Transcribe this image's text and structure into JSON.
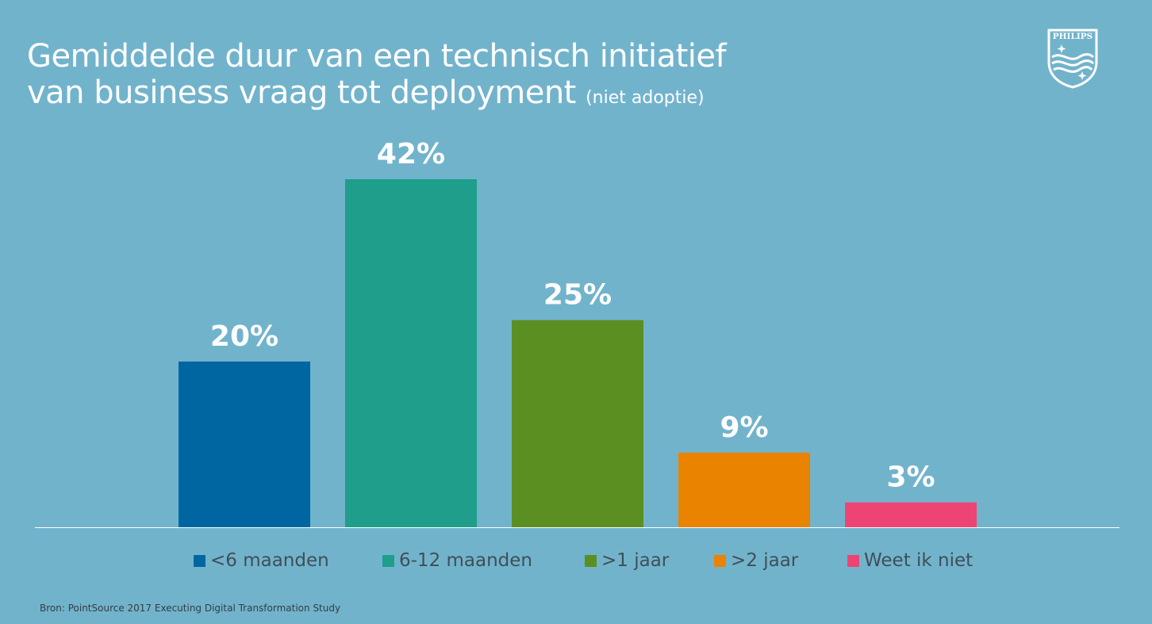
{
  "header": {
    "title_line1": "Gemiddelde duur van een technisch initiatief",
    "title_line2": "van business vraag tot deployment",
    "title_suffix": "(niet adoptie)"
  },
  "logo": {
    "text": "PHILIPS",
    "icon": "philips-shield-icon"
  },
  "colors": {
    "background": "#72b3cc",
    "label": "#ffffff",
    "axis": "#ffffff",
    "legend_text": "#3f4f57"
  },
  "chart_data": {
    "type": "bar",
    "title": "Gemiddelde duur van een technisch initiatief van business vraag tot deployment (niet adoptie)",
    "categories": [
      "<6 maanden",
      "6-12 maanden",
      ">1 jaar",
      ">2 jaar",
      "Weet ik niet"
    ],
    "values": [
      20,
      42,
      25,
      9,
      3
    ],
    "data_labels": [
      "20%",
      "42%",
      "25%",
      "9%",
      "3%"
    ],
    "colors": [
      "#0066a1",
      "#1e9e8b",
      "#5b8f22",
      "#e98300",
      "#ee4473"
    ],
    "unit": "%",
    "ylim": [
      0,
      42
    ],
    "grid": false,
    "legend": "bottom"
  },
  "footer": {
    "source": "Bron: PointSource 2017 Executing Digital Transformation Study"
  }
}
